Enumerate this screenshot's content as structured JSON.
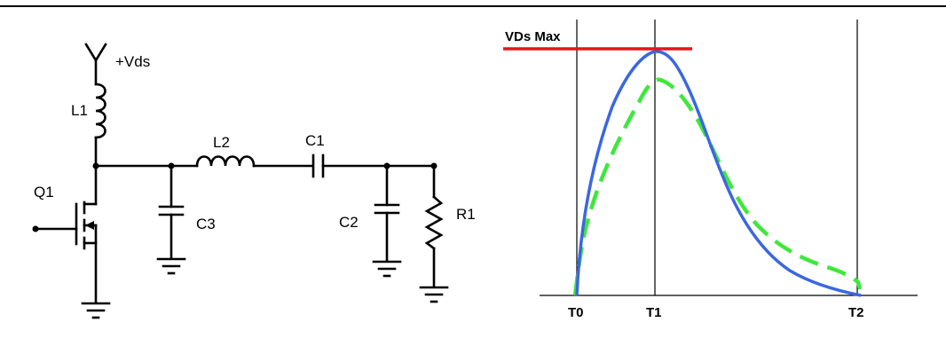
{
  "circuit": {
    "supply_label": "+Vds",
    "inductor_1": "L1",
    "inductor_2": "L2",
    "capacitor_1": "C1",
    "capacitor_2": "C2",
    "capacitor_3": "C3",
    "resistor_1": "R1",
    "transistor": "Q1"
  },
  "waveform": {
    "max_label": "VDs Max",
    "time_markers": [
      "T0",
      "T1",
      "T2"
    ],
    "colors": {
      "max_line": "#e8141a",
      "solid_curve": "#3b67e0",
      "dashed_curve": "#3ee83a"
    }
  }
}
